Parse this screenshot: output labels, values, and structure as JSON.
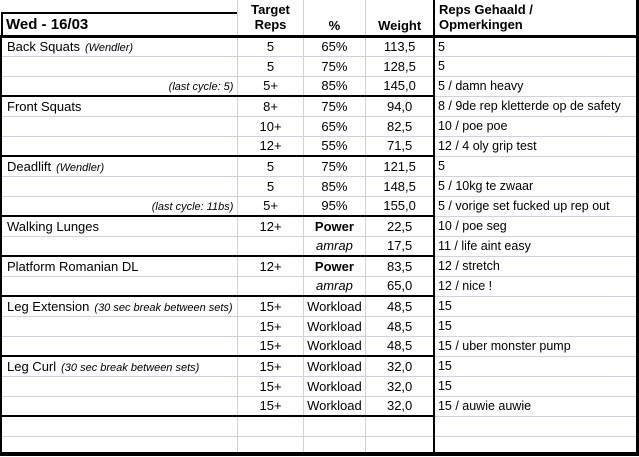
{
  "title": "Wed - 16/03",
  "header": {
    "target_line1": "Target",
    "target_line2": "Reps",
    "pct": "%",
    "weight": "Weight",
    "comments_line1": "Reps Gehaald /",
    "comments_line2": "Opmerkingen"
  },
  "rows": [
    {
      "exercise": "Back Squats",
      "note": "(Wendler)",
      "target": "5",
      "pct": "65%",
      "weight": "113,5",
      "comment": "5"
    },
    {
      "target": "5",
      "pct": "75%",
      "weight": "128,5",
      "comment": "5"
    },
    {
      "note_right": "(last cycle: 5)",
      "target": "5+",
      "pct": "85%",
      "weight": "145,0",
      "comment": "5 / damn heavy",
      "section_end": true
    },
    {
      "exercise": "Front Squats",
      "target": "8+",
      "pct": "75%",
      "weight": "94,0",
      "comment": "8 / 9de rep kletterde op de safety"
    },
    {
      "target": "10+",
      "pct": "65%",
      "weight": "82,5",
      "comment": "10 / poe poe"
    },
    {
      "target": "12+",
      "pct": "55%",
      "weight": "71,5",
      "comment": "12 / 4 oly grip test",
      "section_end": true
    },
    {
      "exercise": "Deadlift",
      "note": "(Wendler)",
      "target": "5",
      "pct": "75%",
      "weight": "121,5",
      "comment": "5"
    },
    {
      "target": "5",
      "pct": "85%",
      "weight": "148,5",
      "comment": "5 / 10kg te zwaar"
    },
    {
      "note_right": "(last cycle: 11bs)",
      "target": "5+",
      "pct": "95%",
      "weight": "155,0",
      "comment": "5 / vorige set fucked up rep out",
      "section_end": true
    },
    {
      "exercise": "Walking Lunges",
      "target": "12+",
      "pct": "Power",
      "pct_style": "bold",
      "weight": "22,5",
      "comment": "10 / poe seg"
    },
    {
      "pct": "amrap",
      "pct_style": "italic",
      "weight": "17,5",
      "comment": "11 / life aint easy",
      "section_end": true
    },
    {
      "exercise": "Platform Romanian DL",
      "target": "12+",
      "pct": "Power",
      "pct_style": "bold",
      "weight": "83,5",
      "comment": "12 / stretch"
    },
    {
      "pct": "amrap",
      "pct_style": "italic",
      "weight": "65,0",
      "comment": "12 / nice !",
      "section_end": true
    },
    {
      "exercise": "Leg Extension",
      "note": "(30 sec break between sets)",
      "target": "15+",
      "pct": "Workload",
      "weight": "48,5",
      "comment": "15"
    },
    {
      "target": "15+",
      "pct": "Workload",
      "weight": "48,5",
      "comment": "15"
    },
    {
      "target": "15+",
      "pct": "Workload",
      "weight": "48,5",
      "comment": "15 / uber monster pump",
      "section_end": true
    },
    {
      "exercise": "Leg Curl",
      "note": "(30 sec break between sets)",
      "target": "15+",
      "pct": "Workload",
      "weight": "32,0",
      "comment": "15"
    },
    {
      "target": "15+",
      "pct": "Workload",
      "weight": "32,0",
      "comment": "15"
    },
    {
      "target": "15+",
      "pct": "Workload",
      "weight": "32,0",
      "comment": "15 / auwie auwie",
      "section_end": true
    },
    {
      "empty": true
    },
    {
      "empty": true,
      "last": true
    }
  ]
}
